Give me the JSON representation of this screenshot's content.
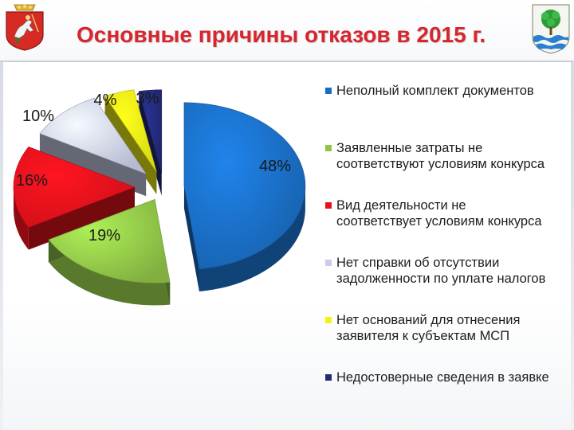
{
  "slide": {
    "title": "Основные причины отказов в 2015 г."
  },
  "logos": {
    "left": "moscow-region-coat-of-arms",
    "right": "city-coat-of-arms"
  },
  "colors": {
    "title": "#d7262d",
    "slice_1": "#1a6cc1",
    "slice_2": "#8fc447",
    "slice_3": "#e8111b",
    "slice_4": "#c9cde8",
    "slice_5": "#f1f216",
    "slice_6": "#222a78"
  },
  "chart_data": {
    "type": "pie",
    "title": "",
    "style": "3d-exploded",
    "legend_position": "right",
    "slices": [
      {
        "label": "Неполный комплект документов",
        "value": 48,
        "display": "48%",
        "color": "#1a6cc1",
        "lines": [
          "Неполный комплект документов"
        ]
      },
      {
        "label": "Заявленные затраты не соответствуют условиям конкурса",
        "value": 19,
        "display": "19%",
        "color": "#8fc447",
        "lines": [
          "Заявленные затраты не",
          "соответствуют условиям конкурса"
        ]
      },
      {
        "label": "Вид деятельности не соответствует условиям конкурса",
        "value": 16,
        "display": "16%",
        "color": "#e8111b",
        "lines": [
          "Вид деятельности не",
          "соответствует условиям конкурса"
        ]
      },
      {
        "label": "Нет справки об отсутствии задолженности по уплате налогов",
        "value": 10,
        "display": "10%",
        "color": "#c9cde8",
        "lines": [
          "Нет справки об отсутствии",
          "задолженности по уплате налогов"
        ]
      },
      {
        "label": "Нет оснований для отнесения заявителя к субъектам МСП",
        "value": 4,
        "display": "4%",
        "color": "#f1f216",
        "lines": [
          "Нет оснований для отнесения",
          "заявителя к субъектам МСП"
        ]
      },
      {
        "label": "Недостоверные сведения в заявке",
        "value": 3,
        "display": "3%",
        "color": "#222a78",
        "lines": [
          "Недостоверные сведения в заявке"
        ]
      }
    ]
  }
}
